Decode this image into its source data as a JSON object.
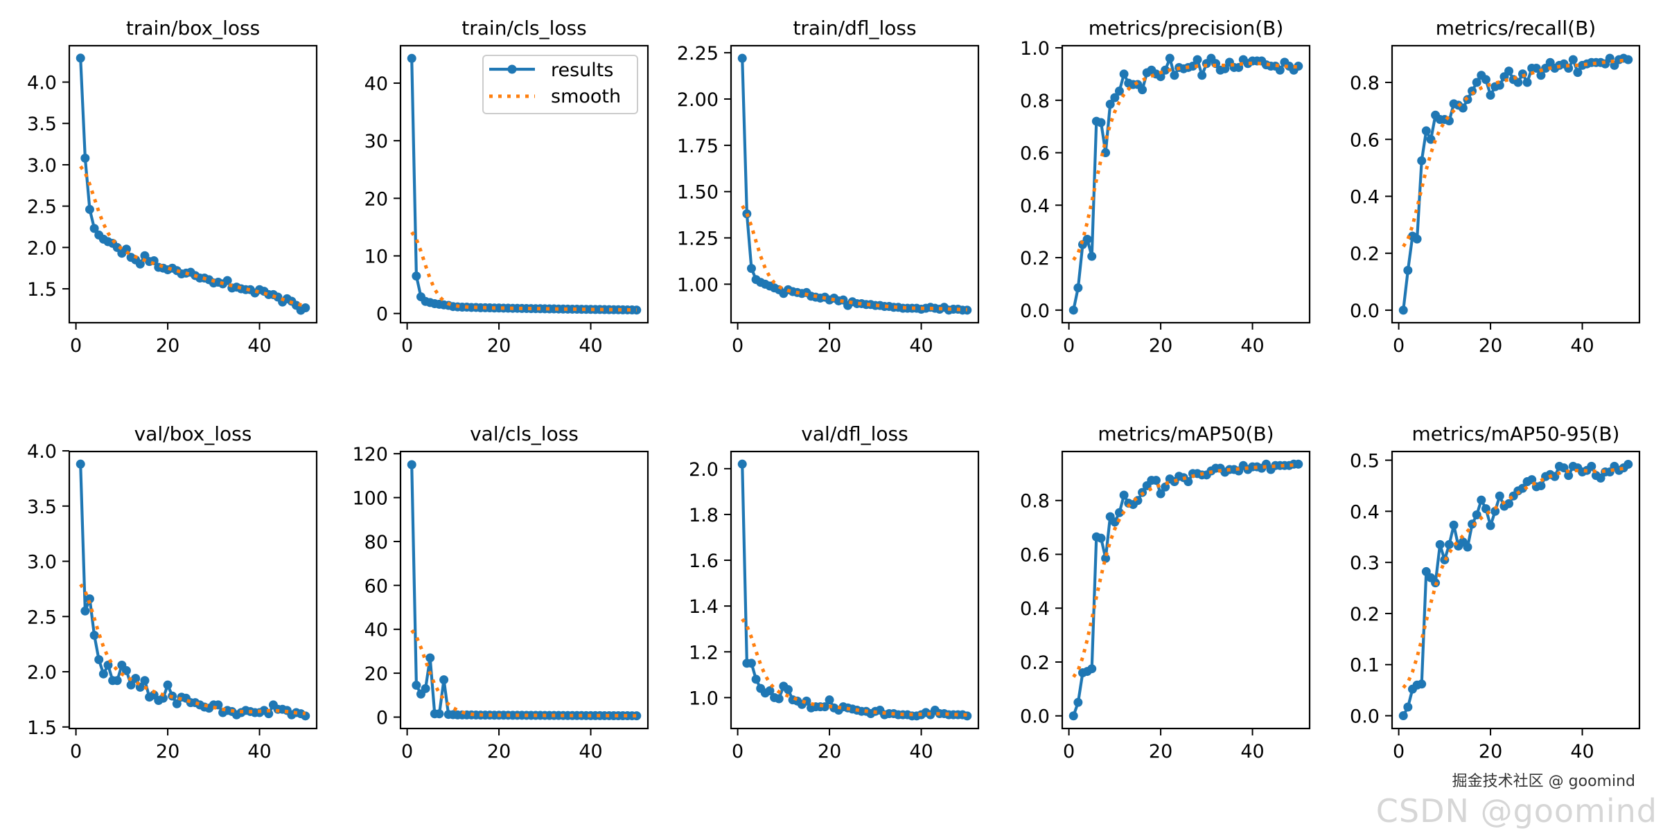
{
  "colors": {
    "results": "#1f77b4",
    "smooth": "#ff7f0e"
  },
  "legend": {
    "labels": [
      "results",
      "smooth"
    ],
    "placement": "upper-right",
    "shown_in": "train/cls_loss"
  },
  "watermark": {
    "primary": "CSDN @goomind",
    "secondary": "掘金技术社区 @ goomind"
  },
  "chart_data": [
    {
      "type": "line",
      "title": "train/box_loss",
      "xlim": [
        -1.45,
        52.45
      ],
      "ylim": [
        1.09,
        4.44
      ],
      "xticks": [
        "0",
        "20",
        "40"
      ],
      "yticks": [
        "1.5",
        "2.0",
        "2.5",
        "3.0",
        "3.5",
        "4.0"
      ],
      "x_start": 1,
      "series": [
        {
          "name": "results",
          "values": [
            4.29,
            3.08,
            2.46,
            2.23,
            2.15,
            2.1,
            2.07,
            2.05,
            2.0,
            1.93,
            1.98,
            1.88,
            1.85,
            1.8,
            1.9,
            1.83,
            1.84,
            1.76,
            1.75,
            1.73,
            1.75,
            1.72,
            1.68,
            1.69,
            1.7,
            1.66,
            1.63,
            1.63,
            1.61,
            1.57,
            1.58,
            1.56,
            1.6,
            1.51,
            1.52,
            1.5,
            1.49,
            1.49,
            1.45,
            1.49,
            1.47,
            1.43,
            1.43,
            1.4,
            1.34,
            1.38,
            1.35,
            1.3,
            1.24,
            1.27
          ]
        },
        {
          "name": "smooth"
        }
      ]
    },
    {
      "type": "line",
      "title": "train/cls_loss",
      "xlim": [
        -1.45,
        52.45
      ],
      "ylim": [
        -1.6,
        46.5
      ],
      "xticks": [
        "0",
        "20",
        "40"
      ],
      "yticks": [
        "0",
        "10",
        "20",
        "30",
        "40"
      ],
      "x_start": 1,
      "series": [
        {
          "name": "results",
          "values": [
            44.3,
            6.5,
            2.9,
            2.1,
            1.9,
            1.7,
            1.6,
            1.5,
            1.4,
            1.2,
            1.15,
            1.1,
            1.1,
            1.05,
            1.05,
            1.0,
            1.0,
            0.98,
            0.95,
            0.95,
            0.93,
            0.92,
            0.9,
            0.9,
            0.88,
            0.87,
            0.85,
            0.84,
            0.83,
            0.82,
            0.8,
            0.8,
            0.78,
            0.77,
            0.76,
            0.75,
            0.74,
            0.73,
            0.72,
            0.71,
            0.7,
            0.7,
            0.68,
            0.67,
            0.66,
            0.65,
            0.64,
            0.63,
            0.62,
            0.6
          ]
        },
        {
          "name": "smooth"
        }
      ]
    },
    {
      "type": "line",
      "title": "train/dfl_loss",
      "xlim": [
        -1.45,
        52.45
      ],
      "ylim": [
        0.792,
        2.288
      ],
      "xticks": [
        "0",
        "20",
        "40"
      ],
      "yticks": [
        "1.00",
        "1.25",
        "1.50",
        "1.75",
        "2.00",
        "2.25"
      ],
      "x_start": 1,
      "series": [
        {
          "name": "results",
          "values": [
            2.22,
            1.38,
            1.085,
            1.025,
            1.01,
            1.0,
            0.99,
            0.98,
            0.97,
            0.95,
            0.97,
            0.96,
            0.955,
            0.95,
            0.955,
            0.935,
            0.93,
            0.925,
            0.93,
            0.915,
            0.925,
            0.91,
            0.915,
            0.885,
            0.905,
            0.895,
            0.895,
            0.89,
            0.89,
            0.885,
            0.885,
            0.88,
            0.88,
            0.875,
            0.875,
            0.87,
            0.87,
            0.87,
            0.87,
            0.865,
            0.87,
            0.875,
            0.87,
            0.865,
            0.875,
            0.86,
            0.865,
            0.865,
            0.86,
            0.86
          ]
        },
        {
          "name": "smooth"
        }
      ]
    },
    {
      "type": "line",
      "title": "metrics/precision(B)",
      "xlim": [
        -1.45,
        52.45
      ],
      "ylim": [
        -0.048,
        1.008
      ],
      "xticks": [
        "0",
        "20",
        "40"
      ],
      "yticks": [
        "0.0",
        "0.2",
        "0.4",
        "0.6",
        "0.8",
        "1.0"
      ],
      "x_start": 1,
      "series": [
        {
          "name": "results",
          "values": [
            0.0,
            0.085,
            0.25,
            0.27,
            0.205,
            0.72,
            0.715,
            0.6,
            0.785,
            0.81,
            0.835,
            0.9,
            0.865,
            0.86,
            0.86,
            0.84,
            0.905,
            0.915,
            0.9,
            0.89,
            0.915,
            0.96,
            0.895,
            0.925,
            0.92,
            0.925,
            0.93,
            0.955,
            0.895,
            0.94,
            0.96,
            0.94,
            0.915,
            0.92,
            0.945,
            0.925,
            0.925,
            0.955,
            0.94,
            0.95,
            0.95,
            0.95,
            0.935,
            0.93,
            0.93,
            0.915,
            0.945,
            0.93,
            0.915,
            0.93
          ]
        },
        {
          "name": "smooth"
        }
      ]
    },
    {
      "type": "line",
      "title": "metrics/recall(B)",
      "xlim": [
        -1.45,
        52.45
      ],
      "ylim": [
        -0.044,
        0.929
      ],
      "xticks": [
        "0",
        "20",
        "40"
      ],
      "yticks": [
        "0.0",
        "0.2",
        "0.4",
        "0.6",
        "0.8"
      ],
      "x_start": 1,
      "series": [
        {
          "name": "results",
          "values": [
            0.0,
            0.14,
            0.26,
            0.25,
            0.525,
            0.63,
            0.6,
            0.685,
            0.67,
            0.67,
            0.665,
            0.725,
            0.72,
            0.71,
            0.74,
            0.77,
            0.8,
            0.825,
            0.81,
            0.755,
            0.785,
            0.79,
            0.82,
            0.84,
            0.81,
            0.8,
            0.83,
            0.8,
            0.85,
            0.85,
            0.825,
            0.85,
            0.87,
            0.85,
            0.86,
            0.865,
            0.85,
            0.88,
            0.835,
            0.86,
            0.865,
            0.87,
            0.87,
            0.87,
            0.865,
            0.885,
            0.86,
            0.88,
            0.885,
            0.88
          ]
        },
        {
          "name": "smooth"
        }
      ]
    },
    {
      "type": "line",
      "title": "val/box_loss",
      "xlim": [
        -1.45,
        52.45
      ],
      "ylim": [
        1.486,
        3.994
      ],
      "xticks": [
        "0",
        "20",
        "40"
      ],
      "yticks": [
        "1.5",
        "2.0",
        "2.5",
        "3.0",
        "3.5",
        "4.0"
      ],
      "x_start": 1,
      "series": [
        {
          "name": "results",
          "values": [
            3.88,
            2.55,
            2.66,
            2.33,
            2.11,
            1.98,
            2.06,
            1.92,
            1.92,
            2.06,
            2.01,
            1.88,
            1.94,
            1.86,
            1.92,
            1.77,
            1.79,
            1.74,
            1.76,
            1.88,
            1.78,
            1.71,
            1.77,
            1.76,
            1.72,
            1.72,
            1.7,
            1.68,
            1.67,
            1.7,
            1.7,
            1.63,
            1.65,
            1.64,
            1.61,
            1.63,
            1.65,
            1.64,
            1.63,
            1.63,
            1.65,
            1.62,
            1.7,
            1.66,
            1.66,
            1.65,
            1.61,
            1.63,
            1.62,
            1.6
          ]
        },
        {
          "name": "smooth"
        }
      ]
    },
    {
      "type": "line",
      "title": "val/cls_loss",
      "xlim": [
        -1.45,
        52.45
      ],
      "ylim": [
        -5.2,
        121.0
      ],
      "xticks": [
        "0",
        "20",
        "40"
      ],
      "yticks": [
        "0",
        "20",
        "40",
        "60",
        "80",
        "100",
        "120"
      ],
      "x_start": 1,
      "series": [
        {
          "name": "results",
          "values": [
            115,
            14.5,
            10.5,
            13,
            27,
            1.5,
            1.5,
            17,
            1.2,
            1.1,
            1.0,
            1.0,
            1.0,
            1.0,
            0.95,
            0.9,
            0.9,
            0.9,
            0.88,
            0.87,
            0.86,
            0.85,
            0.84,
            0.83,
            0.82,
            0.81,
            0.8,
            0.79,
            0.78,
            0.77,
            0.76,
            0.75,
            0.74,
            0.73,
            0.72,
            0.71,
            0.7,
            0.7,
            0.69,
            0.68,
            0.67,
            0.66,
            0.65,
            0.65,
            0.64,
            0.63,
            0.62,
            0.62,
            0.61,
            0.6
          ]
        },
        {
          "name": "smooth"
        }
      ]
    },
    {
      "type": "line",
      "title": "val/dfl_loss",
      "xlim": [
        -1.45,
        52.45
      ],
      "ylim": [
        0.865,
        2.075
      ],
      "xticks": [
        "0",
        "20",
        "40"
      ],
      "yticks": [
        "1.0",
        "1.2",
        "1.4",
        "1.6",
        "1.8",
        "2.0"
      ],
      "x_start": 1,
      "series": [
        {
          "name": "results",
          "values": [
            2.02,
            1.15,
            1.15,
            1.08,
            1.04,
            1.02,
            1.03,
            1.0,
            0.995,
            1.05,
            1.035,
            0.99,
            0.985,
            0.97,
            0.985,
            0.955,
            0.96,
            0.96,
            0.96,
            0.99,
            0.955,
            0.945,
            0.96,
            0.955,
            0.95,
            0.945,
            0.94,
            0.94,
            0.93,
            0.94,
            0.945,
            0.925,
            0.93,
            0.93,
            0.925,
            0.925,
            0.925,
            0.92,
            0.92,
            0.925,
            0.935,
            0.925,
            0.945,
            0.93,
            0.93,
            0.925,
            0.925,
            0.925,
            0.925,
            0.92
          ]
        },
        {
          "name": "smooth"
        }
      ]
    },
    {
      "type": "line",
      "title": "metrics/mAP50(B)",
      "xlim": [
        -1.45,
        52.45
      ],
      "ylim": [
        -0.047,
        0.982
      ],
      "xticks": [
        "0",
        "20",
        "40"
      ],
      "yticks": [
        "0.0",
        "0.2",
        "0.4",
        "0.6",
        "0.8"
      ],
      "x_start": 1,
      "series": [
        {
          "name": "results",
          "values": [
            0.0,
            0.05,
            0.16,
            0.165,
            0.175,
            0.665,
            0.66,
            0.585,
            0.74,
            0.72,
            0.755,
            0.82,
            0.79,
            0.785,
            0.8,
            0.83,
            0.855,
            0.875,
            0.875,
            0.825,
            0.85,
            0.88,
            0.87,
            0.89,
            0.885,
            0.87,
            0.9,
            0.9,
            0.895,
            0.895,
            0.91,
            0.92,
            0.92,
            0.905,
            0.915,
            0.915,
            0.91,
            0.93,
            0.915,
            0.925,
            0.925,
            0.92,
            0.935,
            0.915,
            0.93,
            0.93,
            0.93,
            0.93,
            0.935,
            0.935
          ]
        },
        {
          "name": "smooth"
        }
      ]
    },
    {
      "type": "line",
      "title": "metrics/mAP50-95(B)",
      "xlim": [
        -1.45,
        52.45
      ],
      "ylim": [
        -0.025,
        0.517
      ],
      "xticks": [
        "0",
        "20",
        "40"
      ],
      "yticks": [
        "0.0",
        "0.1",
        "0.2",
        "0.3",
        "0.4",
        "0.5"
      ],
      "x_start": 1,
      "series": [
        {
          "name": "results",
          "values": [
            0.0,
            0.017,
            0.052,
            0.06,
            0.062,
            0.282,
            0.27,
            0.26,
            0.335,
            0.305,
            0.335,
            0.373,
            0.332,
            0.34,
            0.33,
            0.375,
            0.393,
            0.422,
            0.405,
            0.372,
            0.4,
            0.43,
            0.41,
            0.415,
            0.43,
            0.44,
            0.445,
            0.458,
            0.462,
            0.448,
            0.45,
            0.468,
            0.472,
            0.468,
            0.488,
            0.485,
            0.47,
            0.488,
            0.485,
            0.477,
            0.48,
            0.488,
            0.47,
            0.465,
            0.477,
            0.477,
            0.488,
            0.48,
            0.485,
            0.492
          ]
        },
        {
          "name": "smooth"
        }
      ]
    }
  ]
}
